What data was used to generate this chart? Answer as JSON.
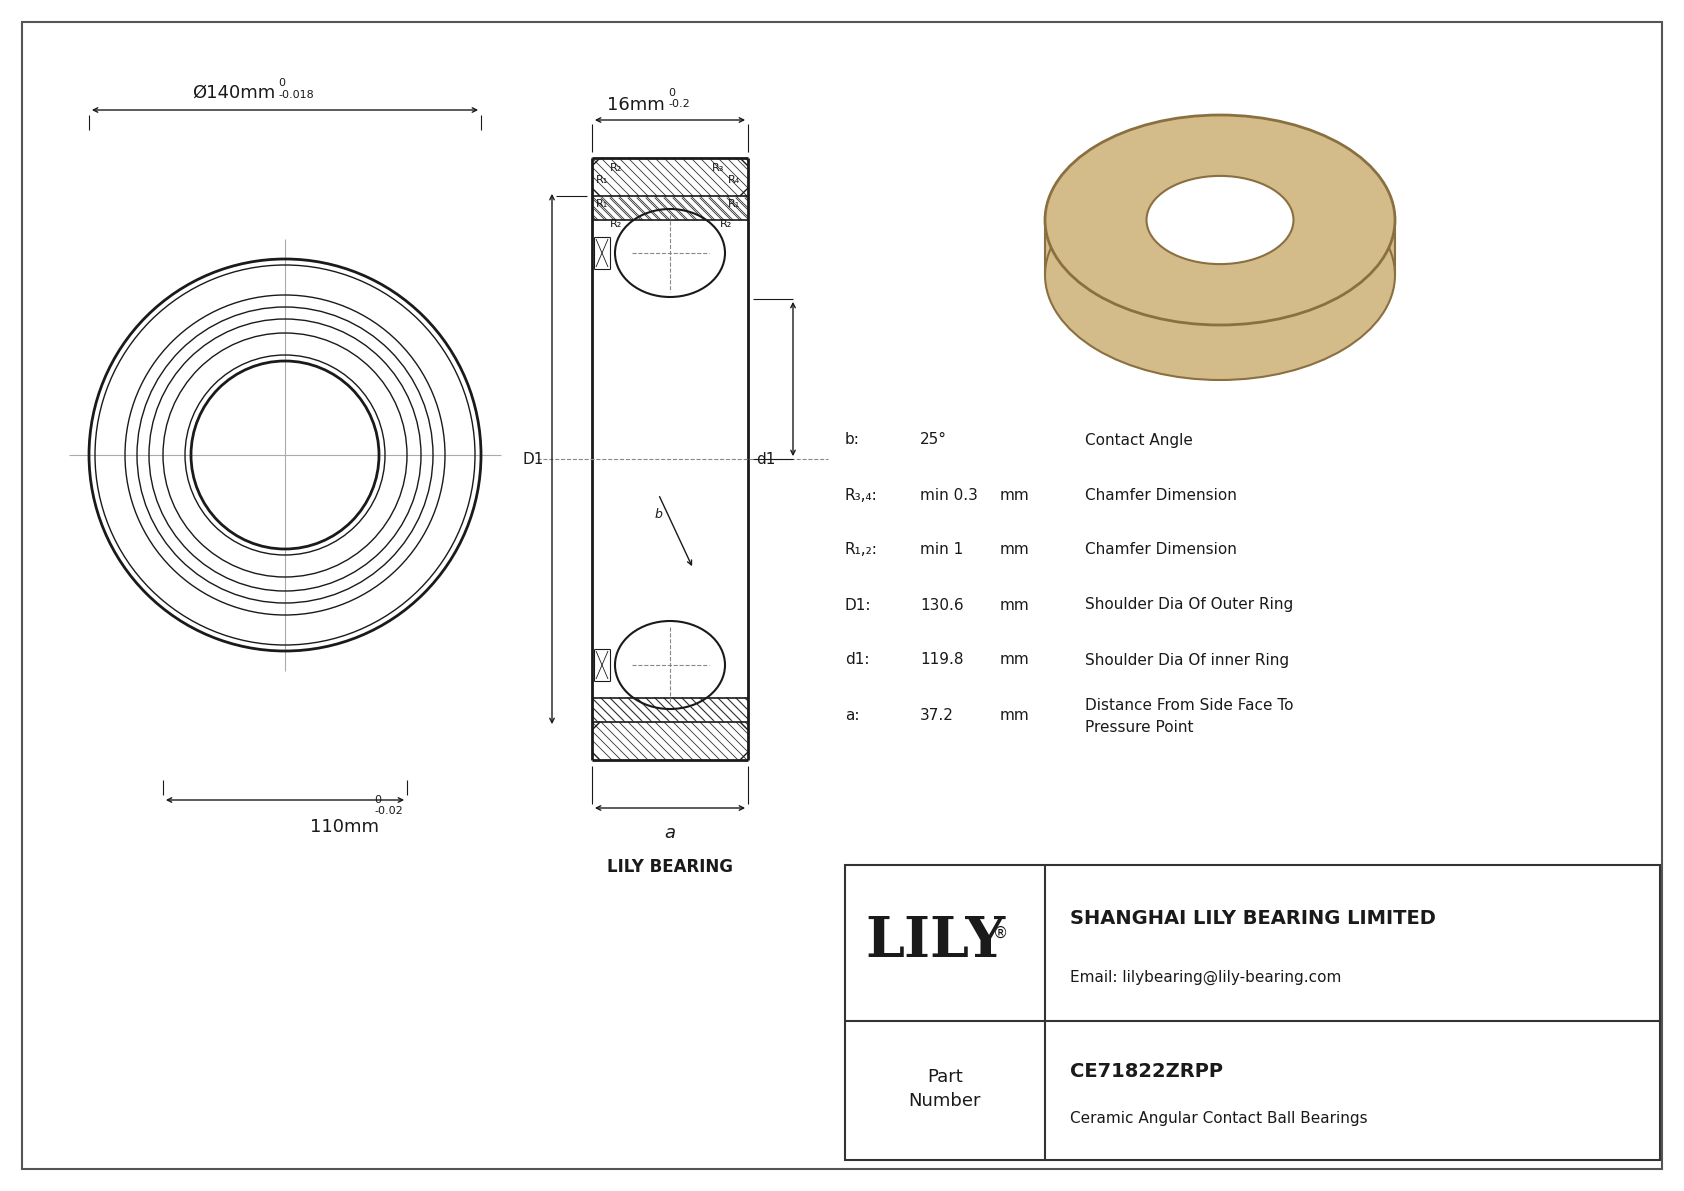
{
  "bg_color": "#ffffff",
  "line_color": "#1a1a1a",
  "hatch_color": "#333333",
  "outer_dia_label": "Ø140mm",
  "outer_dia_tol_top": "0",
  "outer_dia_tol_bot": "-0.018",
  "inner_dia_label": "110mm",
  "inner_dia_tol_top": "0",
  "inner_dia_tol_bot": "-0.02",
  "width_label": "16mm",
  "width_tol_top": "0",
  "width_tol_bot": "-0.2",
  "param_rows": [
    [
      "b:",
      "25°",
      "",
      "Contact Angle"
    ],
    [
      "R₃,₄:",
      "min 0.3",
      "mm",
      "Chamfer Dimension"
    ],
    [
      "R₁,₂:",
      "min 1",
      "mm",
      "Chamfer Dimension"
    ],
    [
      "D1:",
      "130.6",
      "mm",
      "Shoulder Dia Of Outer Ring"
    ],
    [
      "d1:",
      "119.8",
      "mm",
      "Shoulder Dia Of inner Ring"
    ],
    [
      "a:",
      "37.2",
      "mm",
      "Distance From Side Face To\nPressure Point"
    ]
  ],
  "company": "SHANGHAI LILY BEARING LIMITED",
  "email": "Email: lilybearing@lily-bearing.com",
  "part_number": "CE71822ZRPP",
  "part_desc": "Ceramic Angular Contact Ball Bearings",
  "lily_bearing_label": "LILY BEARING",
  "bearing_color": "#d4bc8a",
  "bearing_edge_color": "#8a7040"
}
